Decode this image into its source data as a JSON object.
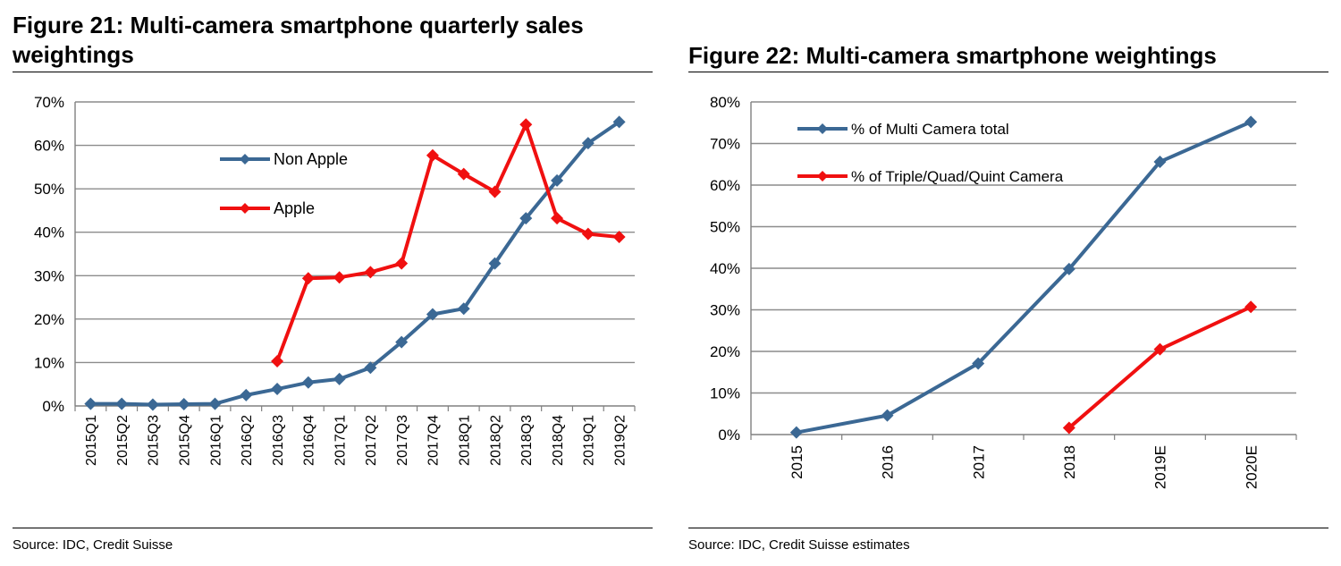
{
  "colors": {
    "blue": "#3B6894",
    "red": "#F01010",
    "grid": "#8C8C8C",
    "axis": "#808080"
  },
  "chart_data": [
    {
      "type": "line",
      "title": "Figure 21:  Multi-camera smartphone quarterly sales weightings",
      "title_lines": [
        "Figure 21:  Multi-camera smartphone quarterly sales",
        "weightings"
      ],
      "x": [
        "2015Q1",
        "2015Q2",
        "2015Q3",
        "2015Q4",
        "2016Q1",
        "2016Q2",
        "2016Q3",
        "2016Q4",
        "2017Q1",
        "2017Q2",
        "2017Q3",
        "2017Q4",
        "2018Q1",
        "2018Q2",
        "2018Q3",
        "2018Q4",
        "2019Q1",
        "2019Q2"
      ],
      "yticks": [
        "0%",
        "10%",
        "20%",
        "30%",
        "40%",
        "50%",
        "60%",
        "70%"
      ],
      "ylim": [
        0,
        70
      ],
      "grid": true,
      "legend_position": "top-center",
      "series": [
        {
          "name": "Non Apple",
          "color": "#3B6894",
          "values": [
            0.5,
            0.5,
            0.3,
            0.4,
            0.5,
            2.5,
            3.9,
            5.4,
            6.2,
            8.8,
            14.7,
            21.1,
            22.4,
            32.8,
            43.2,
            51.9,
            60.5,
            65.4
          ]
        },
        {
          "name": "Apple",
          "color": "#F01010",
          "values": [
            null,
            null,
            null,
            null,
            null,
            null,
            10.3,
            29.4,
            29.6,
            30.8,
            32.8,
            57.7,
            53.4,
            49.3,
            64.8,
            43.2,
            39.6,
            38.9
          ]
        }
      ],
      "source": "Source: IDC, Credit Suisse"
    },
    {
      "type": "line",
      "title": "Figure 22: Multi-camera smartphone weightings",
      "x": [
        "2015",
        "2016",
        "2017",
        "2018",
        "2019E",
        "2020E"
      ],
      "yticks": [
        "0%",
        "10%",
        "20%",
        "30%",
        "40%",
        "50%",
        "60%",
        "70%",
        "80%"
      ],
      "ylim": [
        0,
        80
      ],
      "grid": true,
      "legend_position": "top-left",
      "series": [
        {
          "name": "% of Multi Camera total",
          "color": "#3B6894",
          "values": [
            0.5,
            4.6,
            17.1,
            39.8,
            65.6,
            75.2
          ]
        },
        {
          "name": "% of Triple/Quad/Quint Camera",
          "color": "#F01010",
          "values": [
            null,
            null,
            null,
            1.6,
            20.5,
            30.7
          ]
        }
      ],
      "source": "Source: IDC, Credit Suisse estimates"
    }
  ]
}
